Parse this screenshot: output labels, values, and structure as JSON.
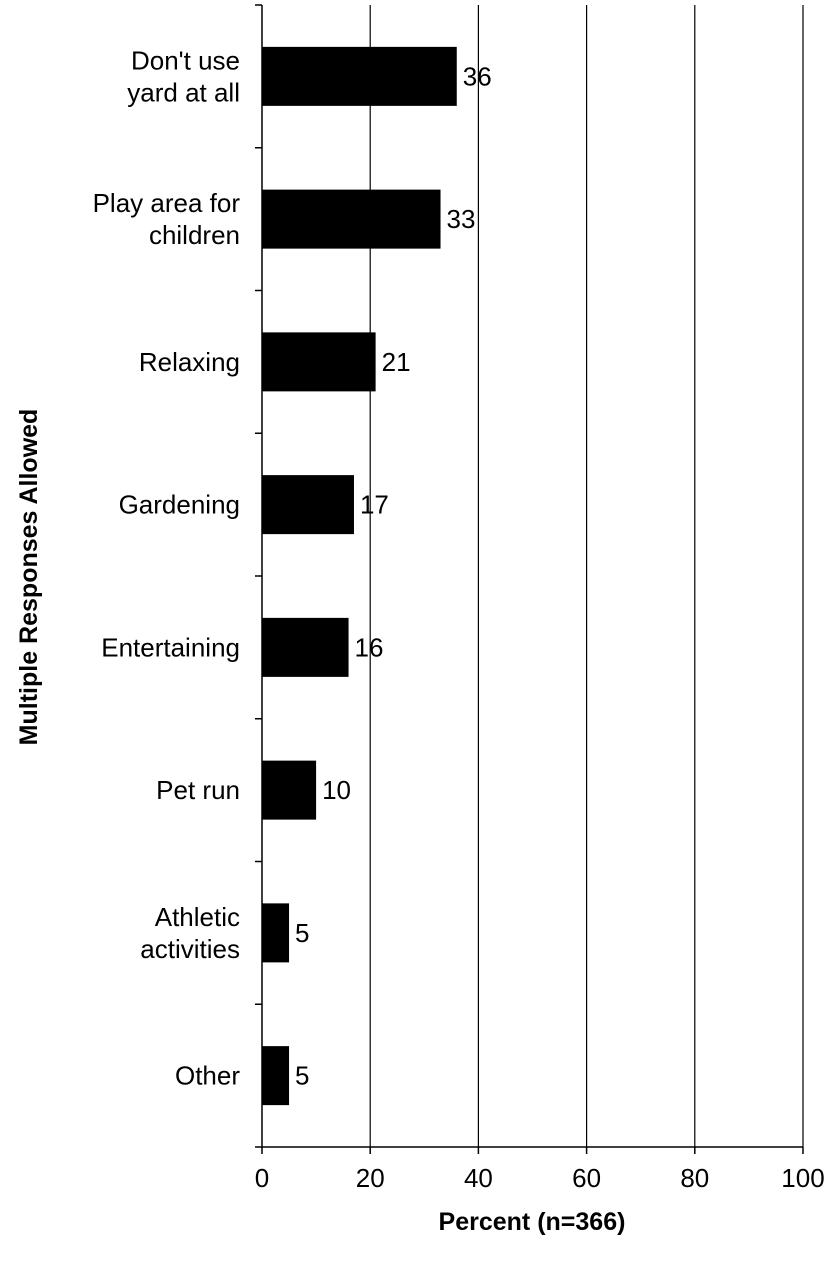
{
  "chart_data": {
    "type": "bar",
    "orientation": "horizontal",
    "categories": [
      "Don't use\nyard at all",
      "Play area for\nchildren",
      "Relaxing",
      "Gardening",
      "Entertaining",
      "Pet run",
      "Athletic\nactivities",
      "Other"
    ],
    "values": [
      36,
      33,
      21,
      17,
      16,
      10,
      5,
      5
    ],
    "data_labels": [
      "36",
      "33",
      "21",
      "17",
      "16",
      "10",
      "5",
      "5"
    ],
    "xlabel": "Percent (n=366)",
    "ylabel": "Multiple Responses Allowed",
    "xlim": [
      0,
      100
    ],
    "x_ticks": [
      0,
      20,
      40,
      60,
      80,
      100
    ],
    "grid": "vertical",
    "legend": "none",
    "bar_color": "#000000"
  }
}
